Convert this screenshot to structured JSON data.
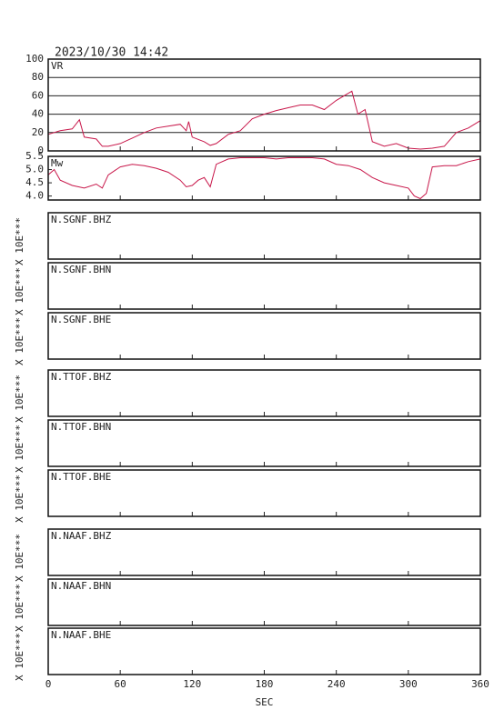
{
  "chart_data": [
    {
      "type": "line",
      "title": "2023/10/30 14:42",
      "label": "VR",
      "color": "#c8174a",
      "grid": true,
      "x": [
        0,
        10,
        20,
        26,
        30,
        40,
        45,
        50,
        60,
        70,
        80,
        90,
        100,
        110,
        115,
        117,
        120,
        130,
        135,
        140,
        150,
        160,
        170,
        180,
        190,
        200,
        210,
        220,
        230,
        240,
        253,
        258,
        264,
        270,
        280,
        290,
        300,
        310,
        320,
        330,
        340,
        350,
        360
      ],
      "y": [
        18,
        22,
        24,
        34,
        15,
        13,
        5,
        5,
        8,
        14,
        20,
        25,
        27,
        29,
        22,
        32,
        15,
        10,
        6,
        8,
        18,
        22,
        35,
        40,
        44,
        47,
        50,
        50,
        45,
        55,
        65,
        40,
        45,
        10,
        5,
        8,
        3,
        2,
        3,
        5,
        20,
        25,
        33
      ],
      "xlim": [
        0,
        360
      ],
      "xticks": [
        0,
        60,
        120,
        180,
        240,
        300,
        360
      ],
      "ylim": [
        0,
        100
      ],
      "yticks": [
        0,
        20,
        40,
        60,
        80,
        100
      ]
    },
    {
      "type": "line",
      "label": "Mw",
      "color": "#c8174a",
      "grid": false,
      "x": [
        0,
        5,
        10,
        20,
        30,
        40,
        45,
        50,
        60,
        70,
        80,
        90,
        100,
        110,
        115,
        120,
        125,
        130,
        135,
        140,
        150,
        160,
        170,
        180,
        190,
        200,
        210,
        220,
        230,
        240,
        250,
        260,
        270,
        280,
        290,
        300,
        305,
        310,
        315,
        320,
        330,
        340,
        350,
        360
      ],
      "y": [
        4.8,
        5.0,
        4.6,
        4.4,
        4.3,
        4.45,
        4.3,
        4.8,
        5.1,
        5.2,
        5.15,
        5.05,
        4.9,
        4.6,
        4.35,
        4.4,
        4.6,
        4.7,
        4.35,
        5.2,
        5.4,
        5.45,
        5.45,
        5.45,
        5.4,
        5.45,
        5.45,
        5.45,
        5.4,
        5.2,
        5.15,
        5.0,
        4.7,
        4.5,
        4.4,
        4.3,
        4.0,
        3.9,
        4.1,
        5.1,
        5.15,
        5.15,
        5.3,
        5.4
      ],
      "xlim": [
        0,
        360
      ],
      "xticks": [
        0,
        60,
        120,
        180,
        240,
        300,
        360
      ],
      "ylim": [
        3.85,
        5.5
      ],
      "yticks": [
        {
          "value": 4,
          "label": "4.0"
        },
        4.5,
        {
          "value": 5,
          "label": "5.0"
        },
        5.5
      ]
    },
    {
      "type": "waveform",
      "title": "N.SGNF.BHZ",
      "ylabel": "X 10E***",
      "xlim": [
        0,
        360
      ],
      "xticks": [
        0,
        60,
        120,
        180,
        240,
        300,
        360
      ]
    },
    {
      "type": "waveform",
      "title": "N.SGNF.BHN",
      "ylabel": "X 10E***",
      "xlim": [
        0,
        360
      ],
      "xticks": [
        0,
        60,
        120,
        180,
        240,
        300,
        360
      ]
    },
    {
      "type": "waveform",
      "title": "N.SGNF.BHE",
      "ylabel": "X 10E***",
      "xlim": [
        0,
        360
      ],
      "xticks": [
        0,
        60,
        120,
        180,
        240,
        300,
        360
      ]
    },
    {
      "type": "waveform",
      "title": "N.TTOF.BHZ",
      "ylabel": "X 10E***",
      "xlim": [
        0,
        360
      ],
      "xticks": [
        0,
        60,
        120,
        180,
        240,
        300,
        360
      ]
    },
    {
      "type": "waveform",
      "title": "N.TTOF.BHN",
      "ylabel": "X 10E***",
      "xlim": [
        0,
        360
      ],
      "xticks": [
        0,
        60,
        120,
        180,
        240,
        300,
        360
      ]
    },
    {
      "type": "waveform",
      "title": "N.TTOF.BHE",
      "ylabel": "X 10E***",
      "xlim": [
        0,
        360
      ],
      "xticks": [
        0,
        60,
        120,
        180,
        240,
        300,
        360
      ]
    },
    {
      "type": "waveform",
      "title": "N.NAAF.BHZ",
      "ylabel": "X 10E***",
      "xlim": [
        0,
        360
      ],
      "xticks": [
        0,
        60,
        120,
        180,
        240,
        300,
        360
      ]
    },
    {
      "type": "waveform",
      "title": "N.NAAF.BHN",
      "ylabel": "X 10E***",
      "xlim": [
        0,
        360
      ],
      "xticks": [
        0,
        60,
        120,
        180,
        240,
        300,
        360
      ]
    },
    {
      "type": "waveform",
      "title": "N.NAAF.BHE",
      "ylabel": "X 10E***",
      "xlabel": "SEC",
      "xlim": [
        0,
        360
      ],
      "xticks": [
        0,
        60,
        120,
        180,
        240,
        300,
        360
      ]
    }
  ]
}
